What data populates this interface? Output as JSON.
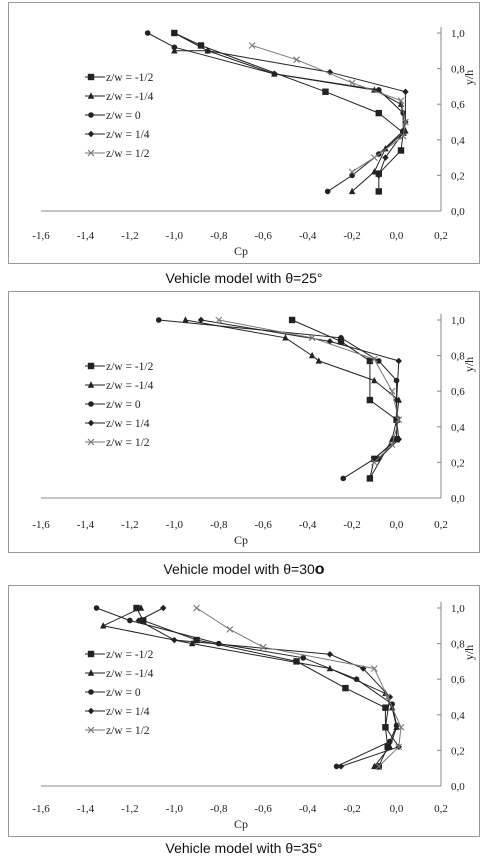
{
  "charts": [
    {
      "caption_main": "Vehicle model with θ=25",
      "caption_mark": "°",
      "caption_mark_bold": false
    },
    {
      "caption_main": "Vehicle model with θ=30",
      "caption_mark": "o",
      "caption_mark_bold": true
    },
    {
      "caption_main": "Vehicle model with θ=35",
      "caption_mark": "°",
      "caption_mark_bold": false
    }
  ],
  "chart_data": [
    {
      "type": "line",
      "title": "",
      "xlabel": "Cp",
      "ylabel": "y/h",
      "xlim": [
        -1.6,
        0.2
      ],
      "ylim": [
        0.0,
        1.0
      ],
      "xticks": [
        "-1,6",
        "-1,4",
        "-1,2",
        "-1,0",
        "-0,8",
        "-0,6",
        "-0,4",
        "-0,2",
        "0,0",
        "0,2"
      ],
      "yticks": [
        "0,0",
        "0,2",
        "0,4",
        "0,6",
        "0,8",
        "1,0"
      ],
      "grid": false,
      "legend_position": "left",
      "series": [
        {
          "name": "z/w = -1/2",
          "marker": "square",
          "color": "#222222",
          "points": [
            [
              -1.0,
              1.0
            ],
            [
              -0.88,
              0.93
            ],
            [
              -0.32,
              0.67
            ],
            [
              -0.08,
              0.55
            ],
            [
              0.03,
              0.44
            ],
            [
              0.02,
              0.34
            ],
            [
              -0.08,
              0.21
            ],
            [
              -0.08,
              0.11
            ]
          ]
        },
        {
          "name": "z/w = -1/4",
          "marker": "triangle",
          "color": "#222222",
          "points": [
            [
              -1.0,
              0.9
            ],
            [
              -0.85,
              0.9
            ],
            [
              -0.55,
              0.77
            ],
            [
              -0.1,
              0.68
            ],
            [
              0.02,
              0.6
            ],
            [
              0.04,
              0.45
            ],
            [
              -0.05,
              0.35
            ],
            [
              -0.1,
              0.22
            ],
            [
              -0.2,
              0.11
            ]
          ]
        },
        {
          "name": "z/w = 0",
          "marker": "circle",
          "color": "#222222",
          "points": [
            [
              -1.12,
              1.0
            ],
            [
              -1.0,
              0.92
            ],
            [
              -0.55,
              0.77
            ],
            [
              -0.08,
              0.68
            ],
            [
              0.03,
              0.55
            ],
            [
              0.03,
              0.45
            ],
            [
              -0.08,
              0.32
            ],
            [
              -0.2,
              0.2
            ],
            [
              -0.31,
              0.11
            ]
          ]
        },
        {
          "name": "z/w = 1/4",
          "marker": "diamond",
          "color": "#222222",
          "points": [
            [
              -1.0,
              1.0
            ],
            [
              -0.85,
              0.9
            ],
            [
              -0.3,
              0.78
            ],
            [
              0.04,
              0.67
            ],
            [
              0.04,
              0.5
            ],
            [
              0.03,
              0.44
            ],
            [
              -0.05,
              0.3
            ],
            [
              -0.08,
              0.2
            ]
          ]
        },
        {
          "name": "z/w = 1/2",
          "marker": "cross",
          "color": "#777777",
          "points": [
            [
              -0.65,
              0.93
            ],
            [
              -0.45,
              0.85
            ],
            [
              -0.2,
              0.72
            ],
            [
              0.02,
              0.62
            ],
            [
              0.04,
              0.5
            ],
            [
              0.03,
              0.42
            ],
            [
              -0.1,
              0.3
            ],
            [
              -0.2,
              0.22
            ]
          ]
        }
      ]
    },
    {
      "type": "line",
      "title": "",
      "xlabel": "Cp",
      "ylabel": "y/h",
      "xlim": [
        -1.6,
        0.2
      ],
      "ylim": [
        0.0,
        1.0
      ],
      "xticks": [
        "-1,6",
        "-1,4",
        "-1,2",
        "-1,0",
        "-0,8",
        "-0,6",
        "-0,4",
        "-0,2",
        "0,0",
        "0,2"
      ],
      "yticks": [
        "0,0",
        "0,2",
        "0,4",
        "0,6",
        "0,8",
        "1,0"
      ],
      "grid": false,
      "legend_position": "left",
      "series": [
        {
          "name": "z/w = -1/2",
          "marker": "square",
          "color": "#222222",
          "points": [
            [
              -0.47,
              1.0
            ],
            [
              -0.25,
              0.88
            ],
            [
              -0.12,
              0.77
            ],
            [
              -0.12,
              0.55
            ],
            [
              0.0,
              0.44
            ],
            [
              0.0,
              0.33
            ],
            [
              -0.1,
              0.22
            ],
            [
              -0.12,
              0.11
            ]
          ]
        },
        {
          "name": "z/w = -1/4",
          "marker": "triangle",
          "color": "#222222",
          "points": [
            [
              -0.95,
              1.0
            ],
            [
              -0.5,
              0.9
            ],
            [
              -0.38,
              0.8
            ],
            [
              -0.35,
              0.77
            ],
            [
              -0.1,
              0.66
            ],
            [
              0.01,
              0.55
            ],
            [
              0.0,
              0.44
            ],
            [
              -0.02,
              0.33
            ],
            [
              -0.12,
              0.11
            ]
          ]
        },
        {
          "name": "z/w = 0",
          "marker": "circle",
          "color": "#222222",
          "points": [
            [
              -1.07,
              1.0
            ],
            [
              -0.25,
              0.9
            ],
            [
              -0.08,
              0.77
            ],
            [
              0.0,
              0.66
            ],
            [
              0.0,
              0.44
            ],
            [
              0.0,
              0.33
            ],
            [
              -0.1,
              0.22
            ],
            [
              -0.24,
              0.11
            ]
          ]
        },
        {
          "name": "z/w = 1/4",
          "marker": "diamond",
          "color": "#222222",
          "points": [
            [
              -0.88,
              1.0
            ],
            [
              -0.3,
              0.88
            ],
            [
              0.01,
              0.77
            ],
            [
              0.0,
              0.55
            ],
            [
              0.0,
              0.44
            ],
            [
              0.01,
              0.33
            ],
            [
              -0.08,
              0.22
            ]
          ]
        },
        {
          "name": "z/w = 1/2",
          "marker": "cross",
          "color": "#777777",
          "points": [
            [
              -0.8,
              1.0
            ],
            [
              -0.38,
              0.9
            ],
            [
              -0.1,
              0.78
            ],
            [
              -0.02,
              0.6
            ],
            [
              0.01,
              0.44
            ],
            [
              -0.02,
              0.3
            ],
            [
              -0.1,
              0.2
            ]
          ]
        }
      ]
    },
    {
      "type": "line",
      "title": "",
      "xlabel": "Cp",
      "ylabel": "y/h",
      "xlim": [
        -1.6,
        0.2
      ],
      "ylim": [
        0.0,
        1.0
      ],
      "xticks": [
        "-1,6",
        "-1,4",
        "-1,2",
        "-1,0",
        "-0,8",
        "-0,6",
        "-0,4",
        "-0,2",
        "0,0",
        "0,2"
      ],
      "yticks": [
        "0,0",
        "0,2",
        "0,4",
        "0,6",
        "0,8",
        "1,0"
      ],
      "grid": false,
      "legend_position": "left",
      "series": [
        {
          "name": "z/w = -1/2",
          "marker": "square",
          "color": "#222222",
          "points": [
            [
              -1.17,
              1.0
            ],
            [
              -1.14,
              0.93
            ],
            [
              -0.9,
              0.82
            ],
            [
              -0.45,
              0.7
            ],
            [
              -0.23,
              0.55
            ],
            [
              -0.05,
              0.44
            ],
            [
              -0.05,
              0.33
            ],
            [
              -0.04,
              0.22
            ],
            [
              -0.08,
              0.11
            ]
          ]
        },
        {
          "name": "z/w = -1/4",
          "marker": "triangle",
          "color": "#222222",
          "points": [
            [
              -1.15,
              1.0
            ],
            [
              -1.32,
              0.9
            ],
            [
              -0.92,
              0.8
            ],
            [
              -0.3,
              0.66
            ],
            [
              -0.05,
              0.52
            ],
            [
              -0.02,
              0.44
            ],
            [
              0.0,
              0.33
            ],
            [
              -0.03,
              0.22
            ],
            [
              -0.1,
              0.11
            ]
          ]
        },
        {
          "name": "z/w = 0",
          "marker": "circle",
          "color": "#222222",
          "points": [
            [
              -1.35,
              1.0
            ],
            [
              -1.2,
              0.93
            ],
            [
              -0.8,
              0.8
            ],
            [
              -0.42,
              0.72
            ],
            [
              -0.18,
              0.6
            ],
            [
              -0.02,
              0.46
            ],
            [
              0.0,
              0.34
            ],
            [
              -0.03,
              0.25
            ],
            [
              -0.27,
              0.11
            ]
          ]
        },
        {
          "name": "z/w = 1/4",
          "marker": "diamond",
          "color": "#222222",
          "points": [
            [
              -1.05,
              1.0
            ],
            [
              -1.16,
              0.93
            ],
            [
              -1.0,
              0.82
            ],
            [
              -0.3,
              0.74
            ],
            [
              -0.15,
              0.66
            ],
            [
              -0.03,
              0.5
            ],
            [
              -0.05,
              0.33
            ],
            [
              0.01,
              0.22
            ],
            [
              -0.25,
              0.11
            ]
          ]
        },
        {
          "name": "z/w = 1/2",
          "marker": "cross",
          "color": "#777777",
          "points": [
            [
              -0.9,
              1.0
            ],
            [
              -0.75,
              0.88
            ],
            [
              -0.6,
              0.78
            ],
            [
              -0.1,
              0.66
            ],
            [
              -0.04,
              0.5
            ],
            [
              0.02,
              0.33
            ],
            [
              0.01,
              0.22
            ],
            [
              -0.08,
              0.11
            ]
          ]
        }
      ]
    }
  ]
}
